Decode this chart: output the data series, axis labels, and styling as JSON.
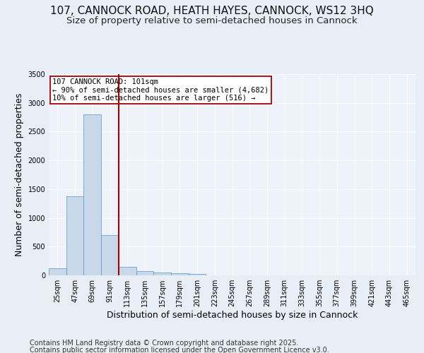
{
  "title": "107, CANNOCK ROAD, HEATH HAYES, CANNOCK, WS12 3HQ",
  "subtitle": "Size of property relative to semi-detached houses in Cannock",
  "xlabel": "Distribution of semi-detached houses by size in Cannock",
  "ylabel": "Number of semi-detached properties",
  "categories": [
    "25sqm",
    "47sqm",
    "69sqm",
    "91sqm",
    "113sqm",
    "135sqm",
    "157sqm",
    "179sqm",
    "201sqm",
    "223sqm",
    "245sqm",
    "267sqm",
    "289sqm",
    "311sqm",
    "333sqm",
    "355sqm",
    "377sqm",
    "399sqm",
    "421sqm",
    "443sqm",
    "465sqm"
  ],
  "values": [
    120,
    1370,
    2800,
    700,
    150,
    70,
    45,
    35,
    20,
    0,
    0,
    0,
    0,
    0,
    0,
    0,
    0,
    0,
    0,
    0,
    0
  ],
  "bar_color": "#c8d8e8",
  "bar_edge_color": "#5599cc",
  "property_line_color": "#aa0000",
  "property_bin_index": 3,
  "annotation_line1": "107 CANNOCK ROAD: 101sqm",
  "annotation_line2": "← 90% of semi-detached houses are smaller (4,682)",
  "annotation_line3": "10% of semi-detached houses are larger (516) →",
  "annotation_box_color": "#ffffff",
  "annotation_box_edge_color": "#aa0000",
  "ylim": [
    0,
    3500
  ],
  "footer1": "Contains HM Land Registry data © Crown copyright and database right 2025.",
  "footer2": "Contains public sector information licensed under the Open Government Licence v3.0.",
  "background_color": "#e8eef5",
  "plot_background_color": "#eef2fa",
  "grid_color": "#ffffff",
  "title_fontsize": 11,
  "subtitle_fontsize": 9.5,
  "label_fontsize": 9,
  "tick_fontsize": 7,
  "footer_fontsize": 7,
  "annotation_fontsize": 7.5
}
